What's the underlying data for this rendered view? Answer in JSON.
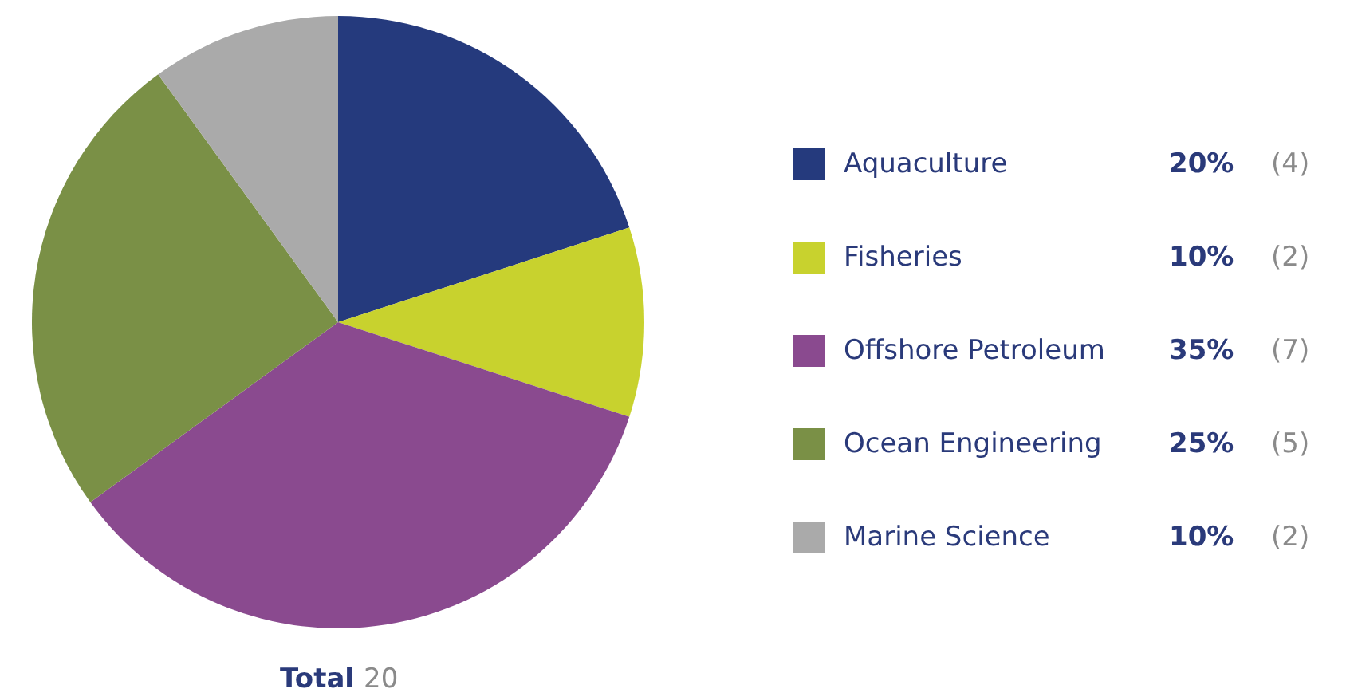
{
  "chart_data": {
    "type": "pie",
    "categories": [
      "Aquaculture",
      "Fisheries",
      "Offshore Petroleum",
      "Ocean Engineering",
      "Marine Science"
    ],
    "values": [
      20,
      10,
      35,
      25,
      10
    ],
    "colors": [
      "#253a7d",
      "#c8d22e",
      "#8a4a8f",
      "#7a9046",
      "#aaaaaa"
    ],
    "value_labels": [
      "20%",
      "10%",
      "35%",
      "25%",
      "10%"
    ],
    "legend": "right",
    "annotations": [
      "(4)",
      "(2)",
      "(7)",
      "(5)",
      "(2)",
      "Total",
      "20"
    ]
  }
}
